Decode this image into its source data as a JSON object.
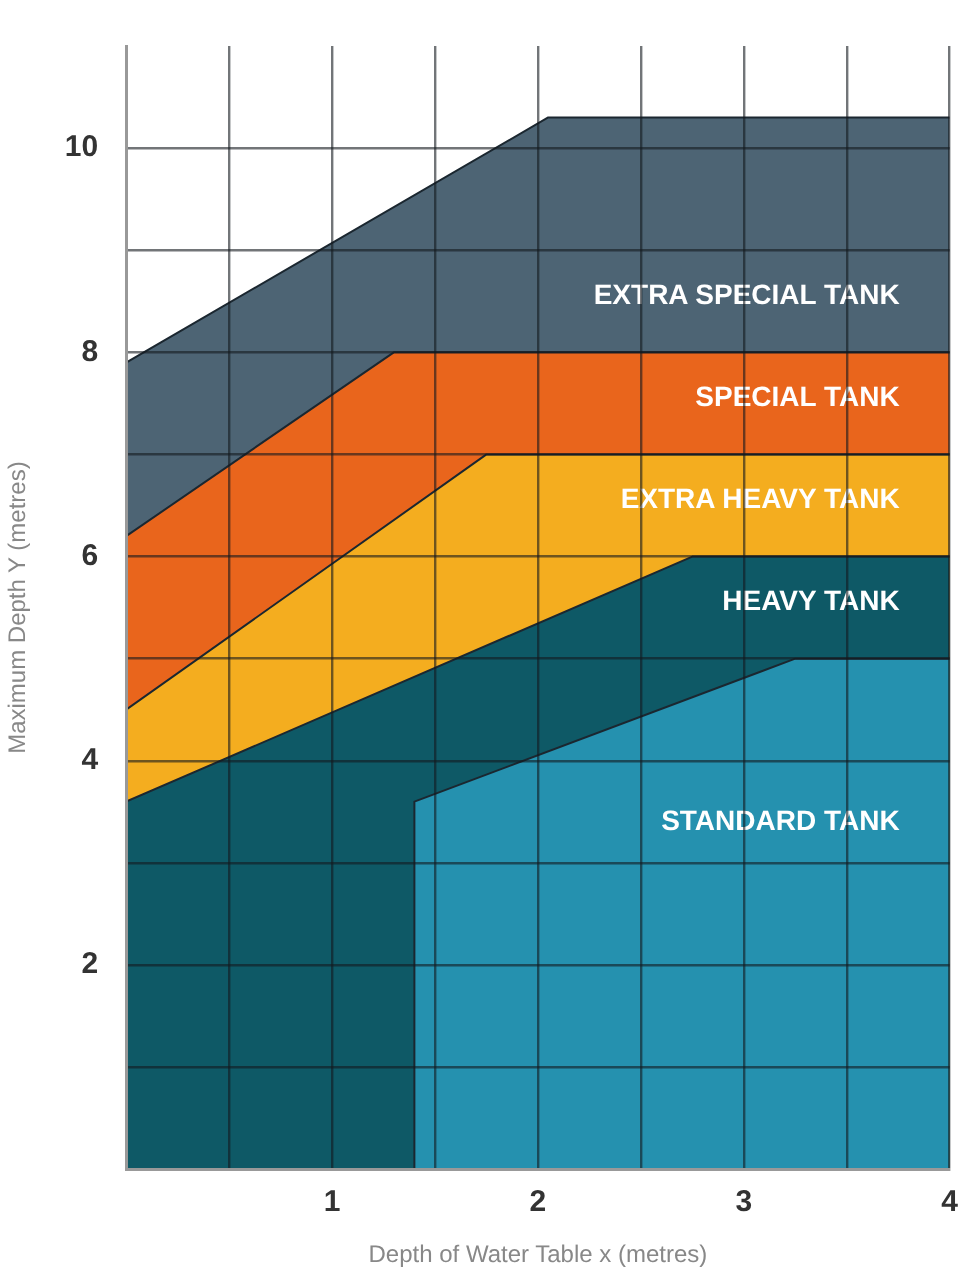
{
  "chart_data": {
    "type": "area",
    "xlabel": "Depth of Water Table x (metres)",
    "ylabel": "Maximum Depth Y (metres)",
    "xlim": [
      0,
      4
    ],
    "ylim": [
      0,
      11
    ],
    "xticks": [
      {
        "value": 0.5,
        "label": null
      },
      1,
      {
        "value": 1.5,
        "label": null
      },
      2,
      {
        "value": 2.5,
        "label": null
      },
      3,
      {
        "value": 3.5,
        "label": null
      },
      4
    ],
    "yticks": [
      {
        "value": 1,
        "label": null
      },
      2,
      {
        "value": 3,
        "label": null
      },
      4,
      {
        "value": 5,
        "label": null
      },
      6,
      {
        "value": 7,
        "label": null
      },
      8,
      {
        "value": 9,
        "label": null
      },
      10
    ],
    "grid": true,
    "legend": false,
    "series": [
      {
        "name": "EXTRA SPECIAL TANK",
        "color": "#4d6474",
        "x": [
          0,
          2.05,
          4
        ],
        "values": [
          7.9,
          10.3,
          10.3
        ]
      },
      {
        "name": "SPECIAL TANK",
        "color": "#e9651c",
        "x": [
          0,
          1.3,
          4
        ],
        "values": [
          6.2,
          8,
          8
        ]
      },
      {
        "name": "EXTRA HEAVY TANK",
        "color": "#f4ad1f",
        "x": [
          0,
          1.75,
          4
        ],
        "values": [
          4.5,
          7,
          7
        ]
      },
      {
        "name": "HEAVY TANK",
        "color": "#0e5966",
        "x": [
          0,
          2.75,
          4
        ],
        "values": [
          3.6,
          6,
          6
        ]
      },
      {
        "name": "STANDARD TANK",
        "color": "#2591af",
        "x": [
          1.4,
          1.4,
          3.25,
          4
        ],
        "values": [
          0,
          3.6,
          5,
          5
        ]
      }
    ]
  }
}
